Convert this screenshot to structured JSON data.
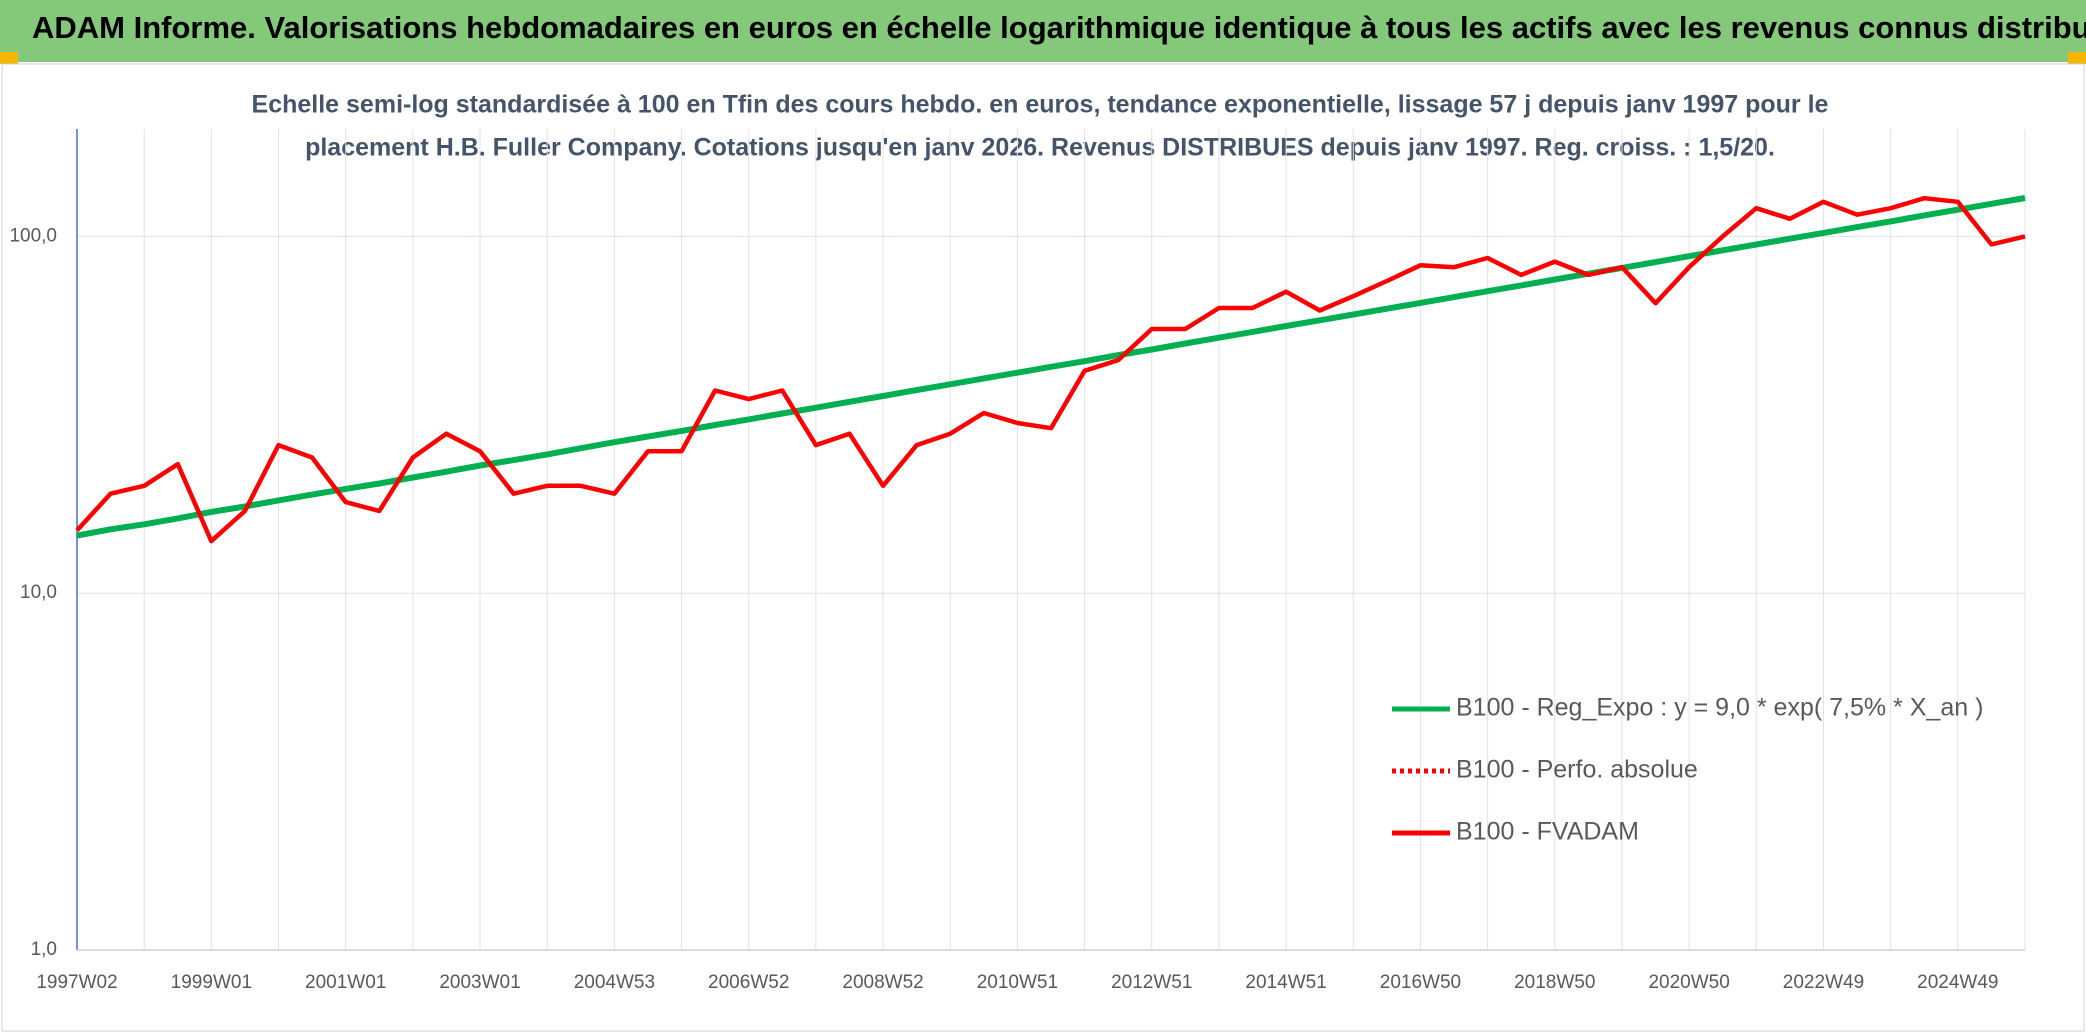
{
  "chart_data": {
    "type": "line",
    "title": "ADAM Informe. Valorisations hebdomadaires en euros en échelle logarithmique identique à tous les actifs avec les revenus connus distribués",
    "subtitle": [
      "Echelle semi-log standardisée à 100 en Tfin des cours hebdo. en euros, tendance exponentielle, lissage 57 j depuis janv 1997 pour le",
      "placement H.B. Fuller Company. Cotations jusqu'en janv 2026. Revenus DISTRIBUES depuis janv 1997. Reg. croiss. : 1,5/20."
    ],
    "categories": [
      "1997W02",
      null,
      null,
      null,
      "1999W01",
      null,
      null,
      null,
      "2001W01",
      null,
      null,
      null,
      "2003W01",
      null,
      null,
      null,
      "2004W53",
      null,
      null,
      null,
      "2006W52",
      null,
      null,
      null,
      "2008W52",
      null,
      null,
      null,
      "2010W51",
      null,
      null,
      null,
      "2012W51",
      null,
      null,
      null,
      "2014W51",
      null,
      null,
      null,
      "2016W50",
      null,
      null,
      null,
      "2018W50",
      null,
      null,
      null,
      "2020W50",
      null,
      null,
      null,
      "2022W49",
      null,
      null,
      null,
      "2024W49",
      null,
      null
    ],
    "log_scale": true,
    "ylim": [
      1,
      200
    ],
    "yticks": [
      {
        "value": 1,
        "label": "1,0"
      },
      {
        "value": 10,
        "label": "10,0"
      },
      {
        "value": 100,
        "label": "100,0"
      }
    ],
    "grid": true,
    "legend": "lower right",
    "series": [
      {
        "name": "B100 - Reg_Expo : y = 9,0 * exp( 7,5% *  X_an )",
        "color": "#00b050",
        "style": "solid",
        "values": [
          14.5,
          15.1,
          15.6,
          16.2,
          16.9,
          17.5,
          18.2,
          18.9,
          19.6,
          20.3,
          21.1,
          21.9,
          22.8,
          23.6,
          24.5,
          25.5,
          26.5,
          27.5,
          28.5,
          29.6,
          30.7,
          31.9,
          33.1,
          34.4,
          35.7,
          37.1,
          38.5,
          40.0,
          41.5,
          43.1,
          44.7,
          46.5,
          48.2,
          50.1,
          52.0,
          54.0,
          56.1,
          58.2,
          60.4,
          62.7,
          65.1,
          67.6,
          70.2,
          72.9,
          75.7,
          78.6,
          81.6,
          84.7,
          88.0,
          91.4,
          94.9,
          98.5,
          102.3,
          106.2,
          110.2,
          114.5,
          118.8,
          123.4,
          128.1
        ]
      },
      {
        "name": "B100 - Perfo. absolue",
        "color": "#ff0000",
        "style": "dotted",
        "values": [
          null,
          null,
          null,
          null,
          null,
          null,
          null,
          null,
          null,
          null,
          null,
          null,
          null,
          null,
          null,
          null,
          null,
          null,
          null,
          null,
          null,
          null,
          null,
          null,
          null,
          null,
          null,
          null,
          null,
          null,
          null,
          null,
          null,
          null,
          null,
          null,
          null,
          null,
          null,
          null,
          null,
          null,
          null,
          null,
          null,
          null,
          null,
          null,
          null,
          null,
          null,
          null,
          null,
          null,
          null,
          null,
          null,
          null,
          null
        ]
      },
      {
        "name": "B100 - FVADAM",
        "color": "#ff0000",
        "style": "solid",
        "values": [
          15,
          19,
          20,
          23,
          14,
          17,
          26,
          24,
          18,
          17,
          24,
          28,
          25,
          19,
          20,
          20,
          19,
          25,
          25,
          37,
          35,
          37,
          26,
          28,
          20,
          26,
          28,
          32,
          30,
          29,
          42,
          45,
          55,
          55,
          63,
          63,
          70,
          62,
          68,
          75,
          83,
          82,
          87,
          78,
          85,
          78,
          82,
          65,
          82,
          100,
          120,
          112,
          125,
          115,
          120,
          128,
          125,
          95,
          100
        ]
      }
    ]
  }
}
